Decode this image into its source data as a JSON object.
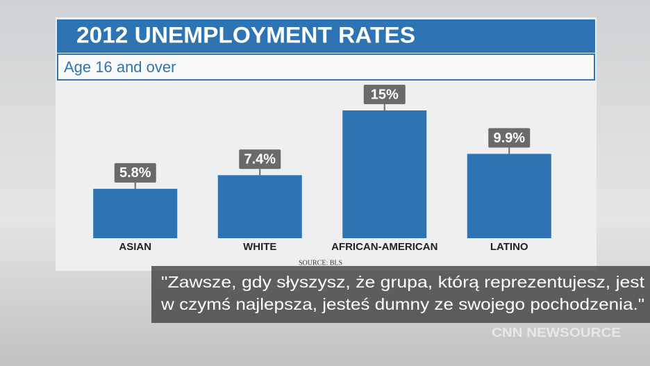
{
  "chart_data": {
    "type": "bar",
    "title": "2012 UNEMPLOYMENT RATES",
    "subtitle": "Age 16 and over",
    "categories": [
      "ASIAN",
      "WHITE",
      "AFRICAN-AMERICAN",
      "LATINO"
    ],
    "values": [
      5.8,
      7.4,
      15,
      9.9
    ],
    "value_labels": [
      "5.8%",
      "7.4%",
      "15%",
      "9.9%"
    ],
    "color": "#2e74b3",
    "source": "SOURCE: BLS"
  },
  "caption": {
    "lines": [
      "\"Zawsze, gdy słyszysz, że grupa, którą reprezentujesz, jest",
      "w czymś najlepsza, jesteś dumny ze swojego pochodzenia.\""
    ]
  },
  "logo": "CNN NEWSOURCE"
}
